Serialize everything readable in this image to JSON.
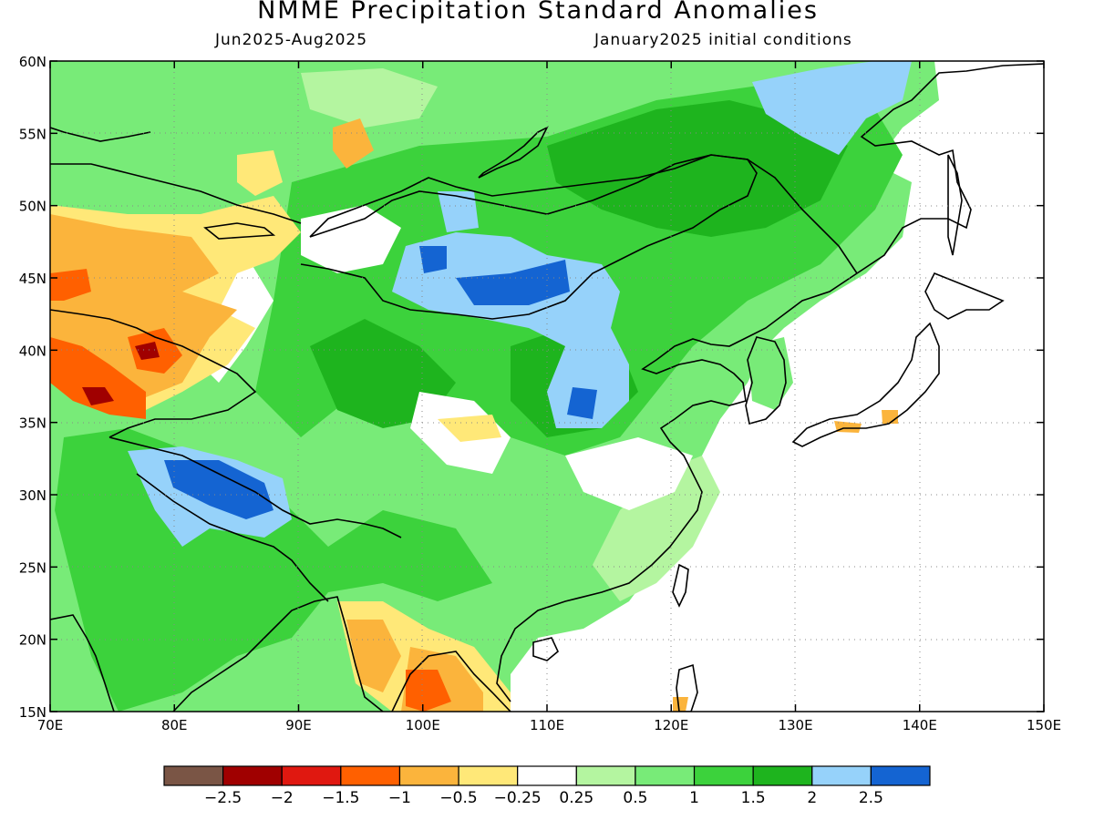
{
  "title": "NMME Precipitation Standard Anomalies",
  "period": "Jun2025-Aug2025",
  "initial_conditions": "January2025 initial conditions",
  "map": {
    "lon_range": [
      70,
      150
    ],
    "lat_range": [
      15,
      60
    ],
    "lon_ticks": [
      "70E",
      "80E",
      "90E",
      "100E",
      "110E",
      "120E",
      "130E",
      "140E",
      "150E"
    ],
    "lat_ticks": [
      "15N",
      "20N",
      "25N",
      "30N",
      "35N",
      "40N",
      "45N",
      "50N",
      "55N",
      "60N"
    ],
    "grid": "dotted"
  },
  "colorbar": {
    "colors": [
      "#7a5545",
      "#a00000",
      "#e01810",
      "#ff6000",
      "#fbb43c",
      "#ffe878",
      "#ffffff",
      "#b4f5a0",
      "#78eb78",
      "#3cd23c",
      "#1eb41e",
      "#96d2fa",
      "#1464d2"
    ],
    "labels": [
      "−2.5",
      "−2",
      "−1.5",
      "−1",
      "−0.5",
      "−0.25",
      "0.25",
      "0.5",
      "1",
      "1.5",
      "2",
      "2.5"
    ]
  }
}
